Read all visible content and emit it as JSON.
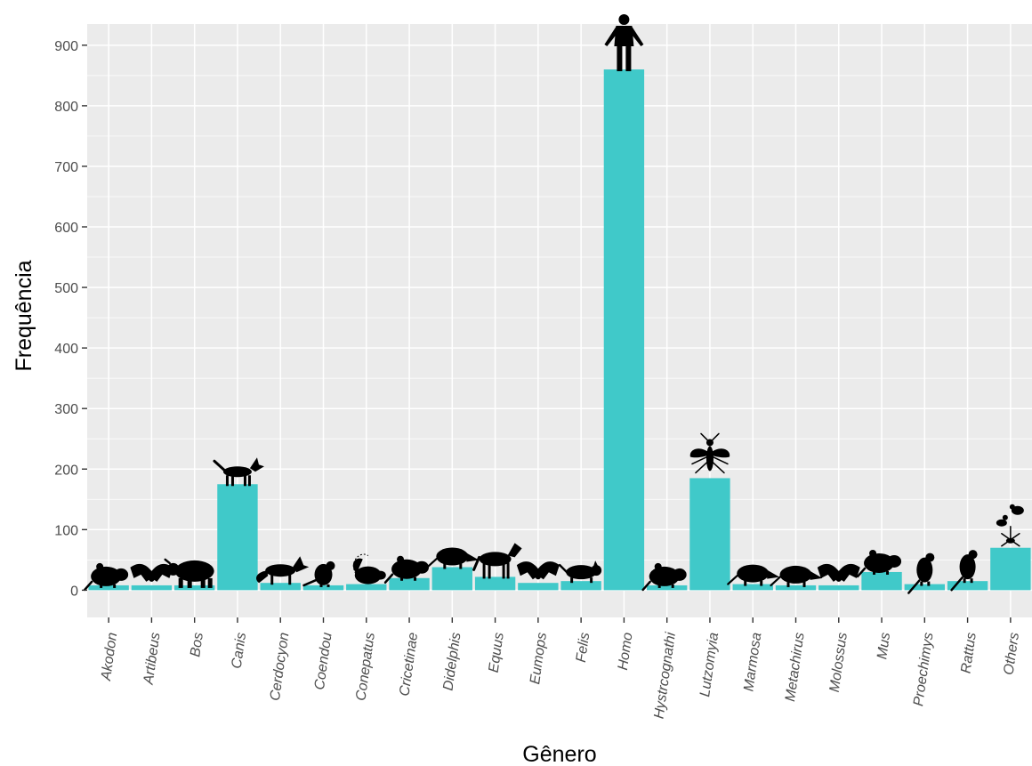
{
  "chart_data": {
    "type": "bar",
    "xlabel": "Gênero",
    "ylabel": "Frequência",
    "categories": [
      "Akodon",
      "Artibeus",
      "Bos",
      "Canis",
      "Cerdocyon",
      "Coendou",
      "Conepatus",
      "Cricetinae",
      "Didelphis",
      "Equus",
      "Eumops",
      "Felis",
      "Homo",
      "Hystrcognathi",
      "Lutzomyia",
      "Marmosa",
      "Metachirus",
      "Molossus",
      "Mus",
      "Proechimys",
      "Rattus",
      "Others"
    ],
    "values": [
      8,
      8,
      8,
      175,
      12,
      8,
      10,
      20,
      38,
      22,
      12,
      15,
      860,
      8,
      185,
      10,
      8,
      8,
      30,
      10,
      15,
      70
    ],
    "ylim": [
      -45,
      935
    ],
    "yticks": [
      0,
      100,
      200,
      300,
      400,
      500,
      600,
      700,
      800,
      900
    ],
    "grid": true,
    "legend": "none",
    "colors": {
      "bar": "#40C9C9",
      "panel": "#EBEBEB",
      "grid": "#FFFFFF",
      "silhouette": "#000000"
    },
    "icons": [
      "rodent-silhouette",
      "bat-silhouette",
      "bovine-silhouette",
      "dog-silhouette",
      "fox-silhouette",
      "porcupine-silhouette",
      "skunk-silhouette",
      "rodent-silhouette",
      "opossum-silhouette",
      "horse-silhouette",
      "bat-silhouette",
      "cat-silhouette",
      "human-silhouette",
      "rodent-silhouette",
      "sandfly-silhouette",
      "opossum-silhouette",
      "opossum-silhouette",
      "bat-silhouette",
      "mouse-silhouette",
      "rat-silhouette",
      "rat-silhouette",
      "mixed-silhouettes"
    ]
  }
}
